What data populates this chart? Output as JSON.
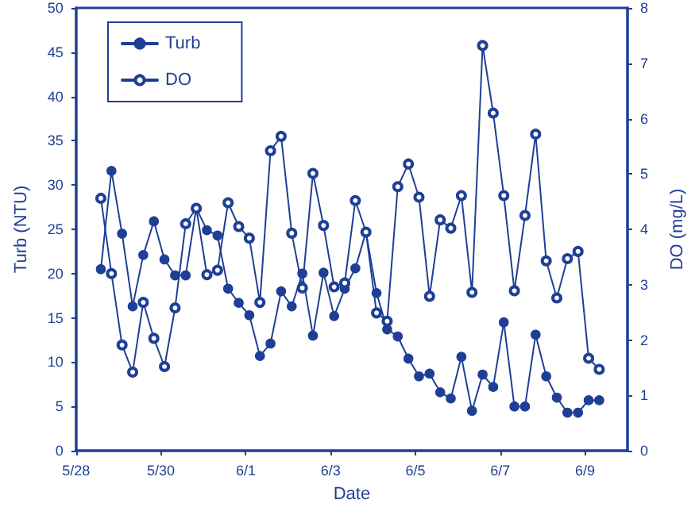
{
  "chart_data": {
    "type": "line",
    "xlabel": "Date",
    "ylabel": "Turb (NTU)",
    "y2label": "DO (mg/L)",
    "x": [
      "--05-28T14:00",
      "--05-28T20:00",
      "--05-29T02:00",
      "--05-29T08:00",
      "--05-29T14:00",
      "--05-29T20:00",
      "--05-30T02:00",
      "--05-30T08:00",
      "--05-30T14:00",
      "--05-30T20:00",
      "--05-31T02:00",
      "--05-31T08:00",
      "--05-31T14:00",
      "--05-31T20:00",
      "--06-01T02:00",
      "--06-01T08:00",
      "--06-01T14:00",
      "--06-01T20:00",
      "--06-02T02:00",
      "--06-02T08:00",
      "--06-02T14:00",
      "--06-02T20:00",
      "--06-03T02:00",
      "--06-03T08:00",
      "--06-03T14:00",
      "--06-03T20:00",
      "--06-04T02:00",
      "--06-04T08:00",
      "--06-04T14:00",
      "--06-04T20:00",
      "--06-05T02:00",
      "--06-05T08:00",
      "--06-05T14:00",
      "--06-05T20:00",
      "--06-06T02:00",
      "--06-06T08:00",
      "--06-06T14:00",
      "--06-06T20:00",
      "--06-07T02:00",
      "--06-07T08:00",
      "--06-07T14:00",
      "--06-07T20:00",
      "--06-08T02:00",
      "--06-08T08:00",
      "--06-08T14:00",
      "--06-08T20:00",
      "--06-09T02:00",
      "--06-09T08:00"
    ],
    "series": [
      {
        "name": "Turb",
        "color": "#1f3f96",
        "values": [
          20.5,
          31.6,
          24.5,
          16.3,
          22.1,
          25.9,
          21.6,
          19.8,
          19.8,
          27.4,
          24.9,
          24.3,
          18.3,
          16.7,
          15.3,
          10.7,
          12.1,
          18.0,
          16.3,
          20.0,
          13.0,
          20.1,
          15.2,
          18.3,
          20.6,
          24.7,
          17.8,
          13.7,
          12.9,
          10.4,
          8.4,
          8.7,
          6.6,
          5.9,
          10.6,
          4.5,
          8.6,
          7.2,
          14.5,
          5.0,
          5.0,
          13.1,
          8.4,
          6.0,
          4.3,
          4.3,
          5.7,
          5.7
        ]
      },
      {
        "name": "DO",
        "color": "#1f3f96",
        "axis": "y2",
        "values": [
          4.56,
          3.2,
          1.91,
          1.42,
          2.68,
          2.03,
          1.52,
          2.58,
          4.1,
          4.38,
          3.18,
          3.26,
          4.48,
          4.05,
          3.84,
          2.68,
          5.42,
          5.68,
          3.93,
          2.94,
          5.01,
          4.07,
          2.96,
          3.03,
          4.52,
          3.95,
          2.49,
          2.34,
          4.77,
          5.18,
          4.58,
          2.79,
          4.17,
          4.02,
          4.61,
          2.86,
          7.32,
          6.1,
          4.61,
          2.89,
          4.25,
          5.72,
          3.43,
          2.76,
          3.47,
          3.6,
          1.67,
          1.47
        ]
      }
    ],
    "xlim": [
      "--05-28",
      "--06-10"
    ],
    "xticks": [
      {
        "value": "--05-28",
        "label": "5/28"
      },
      {
        "value": "--05-30",
        "label": "5/30"
      },
      {
        "value": "--06-01",
        "label": "6/1"
      },
      {
        "value": "--06-03",
        "label": "6/3"
      },
      {
        "value": "--06-05",
        "label": "6/5"
      },
      {
        "value": "--06-07",
        "label": "6/7"
      },
      {
        "value": "--06-09",
        "label": "6/9"
      }
    ],
    "ylim": [
      0,
      50
    ],
    "yticks": [
      0,
      5,
      10,
      15,
      20,
      25,
      30,
      35,
      40,
      45,
      50
    ],
    "y2lim": [
      0,
      8
    ],
    "y2ticks": [
      0,
      1,
      2,
      3,
      4,
      5,
      6,
      7,
      8
    ],
    "grid": false,
    "legend": "top left",
    "marker": "circle",
    "line_style": "solid"
  }
}
